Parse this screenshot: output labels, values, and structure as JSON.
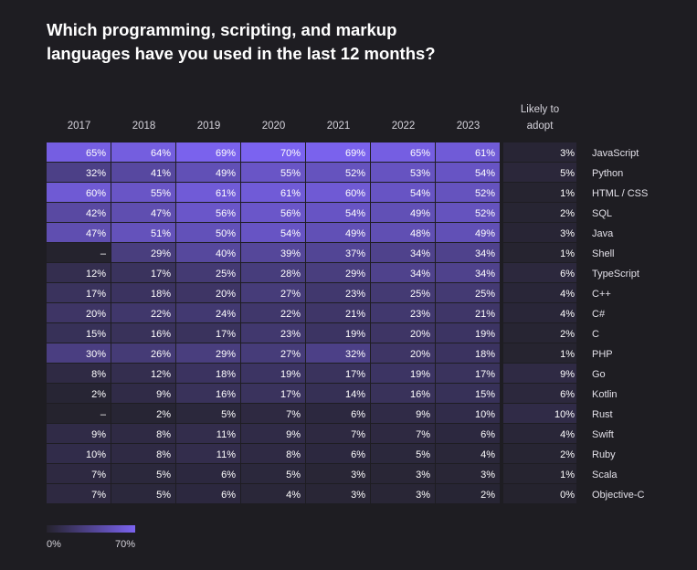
{
  "title_lines": [
    "Which programming, scripting, and markup",
    "languages have you used in the last 12 months?"
  ],
  "legend": {
    "min_label": "0%",
    "max_label": "70%"
  },
  "colors": {
    "background": "#1e1d22",
    "low": "#25232e",
    "high": "#7b63f0"
  },
  "chart_data": {
    "type": "heatmap",
    "title": "Which programming, scripting, and markup languages have you used in the last 12 months?",
    "years": [
      "2017",
      "2018",
      "2019",
      "2020",
      "2021",
      "2022",
      "2023"
    ],
    "adopt_header": [
      "Likely to",
      "adopt"
    ],
    "color_scale": [
      0,
      70
    ],
    "rows": [
      {
        "language": "JavaScript",
        "values": [
          65,
          64,
          69,
          70,
          69,
          65,
          61
        ],
        "adopt": 3
      },
      {
        "language": "Python",
        "values": [
          32,
          41,
          49,
          55,
          52,
          53,
          54
        ],
        "adopt": 5
      },
      {
        "language": "HTML / CSS",
        "values": [
          60,
          55,
          61,
          61,
          60,
          54,
          52
        ],
        "adopt": 1
      },
      {
        "language": "SQL",
        "values": [
          42,
          47,
          56,
          56,
          54,
          49,
          52
        ],
        "adopt": 2
      },
      {
        "language": "Java",
        "values": [
          47,
          51,
          50,
          54,
          49,
          48,
          49
        ],
        "adopt": 3
      },
      {
        "language": "Shell",
        "values": [
          null,
          29,
          40,
          39,
          37,
          34,
          34
        ],
        "adopt": 1
      },
      {
        "language": "TypeScript",
        "values": [
          12,
          17,
          25,
          28,
          29,
          34,
          34
        ],
        "adopt": 6
      },
      {
        "language": "C++",
        "values": [
          17,
          18,
          20,
          27,
          23,
          25,
          25
        ],
        "adopt": 4
      },
      {
        "language": "C#",
        "values": [
          20,
          22,
          24,
          22,
          21,
          23,
          21
        ],
        "adopt": 4
      },
      {
        "language": "C",
        "values": [
          15,
          16,
          17,
          23,
          19,
          20,
          19
        ],
        "adopt": 2
      },
      {
        "language": "PHP",
        "values": [
          30,
          26,
          29,
          27,
          32,
          20,
          18
        ],
        "adopt": 1
      },
      {
        "language": "Go",
        "values": [
          8,
          12,
          18,
          19,
          17,
          19,
          17
        ],
        "adopt": 9
      },
      {
        "language": "Kotlin",
        "values": [
          2,
          9,
          16,
          17,
          14,
          16,
          15
        ],
        "adopt": 6
      },
      {
        "language": "Rust",
        "values": [
          null,
          2,
          5,
          7,
          6,
          9,
          10
        ],
        "adopt": 10
      },
      {
        "language": "Swift",
        "values": [
          9,
          8,
          11,
          9,
          7,
          7,
          6
        ],
        "adopt": 4
      },
      {
        "language": "Ruby",
        "values": [
          10,
          8,
          11,
          8,
          6,
          5,
          4
        ],
        "adopt": 2
      },
      {
        "language": "Scala",
        "values": [
          7,
          5,
          6,
          5,
          3,
          3,
          3
        ],
        "adopt": 1
      },
      {
        "language": "Objective-C",
        "values": [
          7,
          5,
          6,
          4,
          3,
          3,
          2
        ],
        "adopt": 0
      }
    ]
  }
}
